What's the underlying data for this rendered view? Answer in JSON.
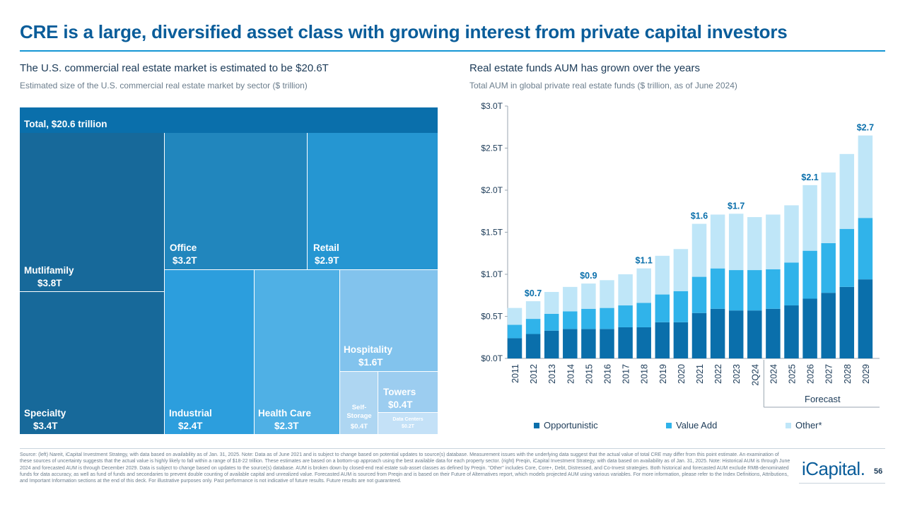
{
  "title": "CRE is a large, diversified asset class with growing interest from private capital investors",
  "left": {
    "heading": "The U.S. commercial real estate market is estimated to be $20.6T",
    "subheading": "Estimated size of the U.S. commercial real estate market by sector ($ trillion)",
    "total_label": "Total, $20.6 trillion",
    "tiles": {
      "multifamily": {
        "label": "Mutlifamily",
        "value": "$3.8T",
        "color": "#17699a"
      },
      "specialty": {
        "label": "Specialty",
        "value": "$3.4T",
        "color": "#17699a"
      },
      "office": {
        "label": "Office",
        "value": "$3.2T",
        "color": "#2186bd"
      },
      "retail": {
        "label": "Retail",
        "value": "$2.9T",
        "color": "#2596d2"
      },
      "industrial": {
        "label": "Industrial",
        "value": "$2.4T",
        "color": "#2c9edd"
      },
      "healthcare": {
        "label": "Health Care",
        "value": "$2.3T",
        "color": "#4fb0e5"
      },
      "hospitality": {
        "label": "Hospitality",
        "value": "$1.6T",
        "color": "#82c3ed"
      },
      "selfstorage": {
        "label": "Self-\nStorage",
        "value": "$0.4T",
        "color": "#aed6f2"
      },
      "towers": {
        "label": "Towers",
        "value": "$0.4T",
        "color": "#9ccdf0"
      },
      "datacenters": {
        "label": "Data Centers",
        "value": "$0.2T",
        "color": "#c4e1f7"
      }
    }
  },
  "right": {
    "heading": "Real estate funds AUM has grown over the years",
    "subheading": "Total AUM in global private real estate funds ($ trillion, as of June 2024)",
    "forecast_label": "Forecast",
    "legend": [
      {
        "name": "Opportunistic",
        "color": "#0a6fab"
      },
      {
        "name": "Value Add",
        "color": "#30b3ea"
      },
      {
        "name": "Other*",
        "color": "#bfe6f8"
      }
    ]
  },
  "chart_data": [
    {
      "type": "treemap",
      "title": "Estimated size of the U.S. commercial real estate market by sector ($ trillion)",
      "total": 20.6,
      "categories": [
        "Mutlifamily",
        "Specialty",
        "Office",
        "Retail",
        "Industrial",
        "Health Care",
        "Hospitality",
        "Self-Storage",
        "Towers",
        "Data Centers"
      ],
      "values": [
        3.8,
        3.4,
        3.2,
        2.9,
        2.4,
        2.3,
        1.6,
        0.4,
        0.4,
        0.2
      ]
    },
    {
      "type": "bar",
      "stacked": true,
      "title": "Total AUM in global private real estate funds ($ trillion, as of June 2024)",
      "categories": [
        "2011",
        "2012",
        "2013",
        "2014",
        "2015",
        "2016",
        "2017",
        "2018",
        "2019",
        "2020",
        "2021",
        "2022",
        "2023",
        "2Q24",
        "2024",
        "2025",
        "2026",
        "2027",
        "2028",
        "2029"
      ],
      "series": [
        {
          "name": "Opportunistic",
          "values": [
            0.24,
            0.29,
            0.33,
            0.35,
            0.35,
            0.35,
            0.37,
            0.37,
            0.43,
            0.43,
            0.54,
            0.59,
            0.57,
            0.57,
            0.59,
            0.63,
            0.71,
            0.78,
            0.85,
            0.94
          ]
        },
        {
          "name": "Value Add",
          "values": [
            0.16,
            0.18,
            0.2,
            0.21,
            0.24,
            0.25,
            0.26,
            0.29,
            0.33,
            0.37,
            0.43,
            0.48,
            0.48,
            0.48,
            0.47,
            0.51,
            0.57,
            0.59,
            0.69,
            0.73
          ]
        },
        {
          "name": "Other*",
          "values": [
            0.2,
            0.21,
            0.26,
            0.29,
            0.3,
            0.33,
            0.37,
            0.41,
            0.46,
            0.5,
            0.63,
            0.64,
            0.67,
            0.63,
            0.65,
            0.68,
            0.78,
            0.84,
            0.89,
            0.98
          ]
        }
      ],
      "data_labels": [
        "",
        "$0.7",
        "",
        "",
        "$0.9",
        "",
        "",
        "$1.1",
        "",
        "",
        "$1.6",
        "",
        "$1.7",
        "",
        "",
        "",
        "$2.1",
        "",
        "",
        "$2.7"
      ],
      "ylim": [
        0,
        3.0
      ],
      "yticks": [
        "$0.0T",
        "$0.5T",
        "$1.0T",
        "$1.5T",
        "$2.0T",
        "$2.5T",
        "$3.0T"
      ],
      "xlabel": "",
      "ylabel": "",
      "annotation": "Forecast"
    }
  ],
  "footer": {
    "source": "Source: (left) Nareit, iCapital Investment Strategy, with data based on availability as of Jan. 31, 2025. Note: Data as of June 2021 and is subject to change based on potential updates to source(s) database. Measurement issues with the underlying data suggest that the actual value of total CRE may differ from this point estimate. An examination of these sources of uncertainty suggests that the actual value is highly likely to fall within a range of $18-22 trillion. These estimates are based on a bottom-up approach using the best available data for each property sector. (right) Preqin, iCapital Investment Strategy, with data based on availability as of Jan. 31, 2025. Note: Historical AUM is through June 2024 and forecasted AUM is through December 2029. Data is subject to change based on updates to the source(s) database. AUM is broken down by closed-end real estate sub-asset classes as defined by Preqin. \"Other\" includes Core, Core+, Debt, Distressed, and Co-Invest strategies. Both historical and forecasted AUM exclude RMB-denominated funds for data accuracy, as well as fund of funds and secondaries to prevent double counting of available capital and unrealized value. Forecasted AUM is sourced from Preqin and is based on their Future of Alternatives report, which models projected AUM using various variables. For more information, please refer to the Index Definitions, Attributions, and Important Information sections at the end of this deck. For illustrative purposes only. Past performance is not indicative of future results. Future results are not guaranteed.",
    "logo": "iCapital.",
    "page": "56"
  }
}
